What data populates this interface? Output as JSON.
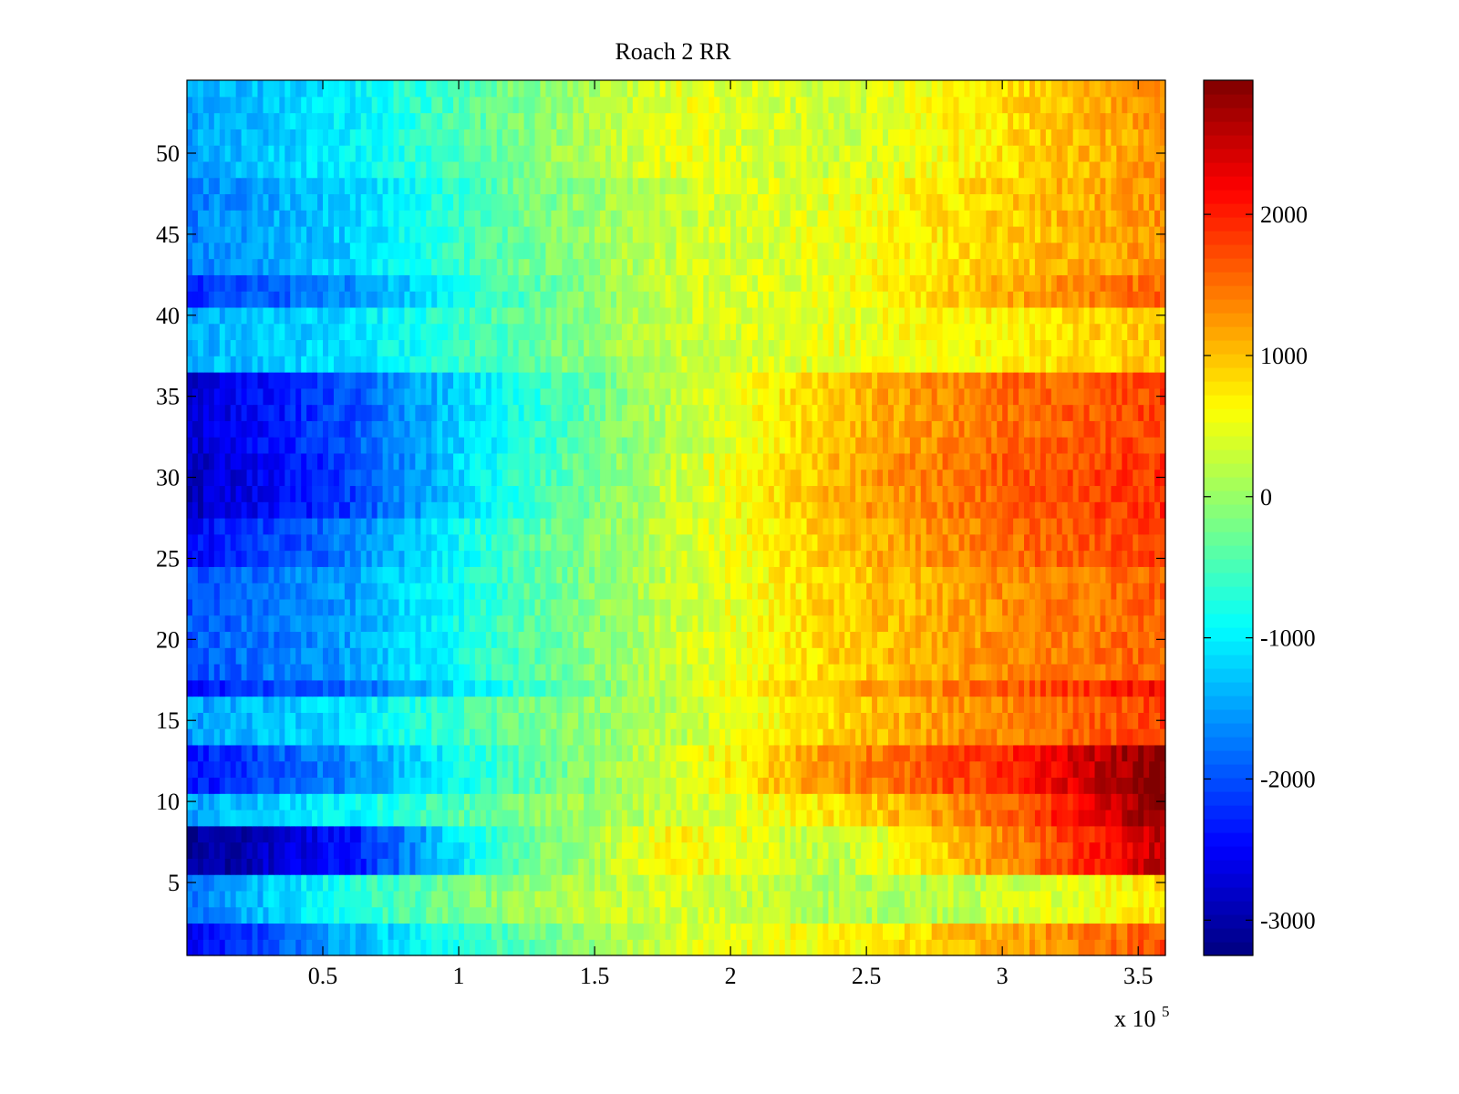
{
  "chart_data": {
    "type": "heatmap",
    "title": "Roach 2 RR",
    "xlabel": "",
    "ylabel": "",
    "x_range": [
      0,
      360000
    ],
    "y_range": [
      0.5,
      54.5
    ],
    "rows": 54,
    "x_ticks": [
      50000,
      100000,
      150000,
      200000,
      250000,
      300000,
      350000
    ],
    "x_tick_labels": [
      "0.5",
      "1",
      "1.5",
      "2",
      "2.5",
      "3",
      "3.5"
    ],
    "x_exponent_label": "x 10",
    "x_exponent_power": "5",
    "y_ticks": [
      5,
      10,
      15,
      20,
      25,
      30,
      35,
      40,
      45,
      50
    ],
    "y_tick_labels": [
      "5",
      "10",
      "15",
      "20",
      "25",
      "30",
      "35",
      "40",
      "45",
      "50"
    ],
    "colorbar": {
      "colormap": "jet",
      "range": [
        -3250,
        2950
      ],
      "ticks": [
        -3000,
        -2000,
        -1000,
        0,
        1000,
        2000
      ],
      "tick_labels": [
        "-3000",
        "-2000",
        "-1000",
        "0",
        "1000",
        "2000"
      ]
    },
    "color_columns_x": [
      0,
      60000,
      120000,
      180000,
      240000,
      300000,
      360000
    ],
    "row_profiles": [
      {
        "rows": [
          1,
          2
        ],
        "values": [
          -2600,
          -1400,
          -400,
          400,
          600,
          1100,
          1700
        ]
      },
      {
        "rows": [
          3,
          4,
          5
        ],
        "values": [
          -1800,
          -700,
          0,
          400,
          100,
          300,
          800
        ]
      },
      {
        "rows": [
          6,
          7,
          8
        ],
        "values": [
          -3200,
          -2400,
          -400,
          700,
          200,
          1300,
          2600
        ]
      },
      {
        "rows": [
          9,
          10
        ],
        "values": [
          -1500,
          -900,
          -200,
          300,
          800,
          1500,
          2900
        ]
      },
      {
        "rows": [
          11,
          12,
          13
        ],
        "values": [
          -2400,
          -1600,
          -500,
          400,
          1300,
          1900,
          3000
        ]
      },
      {
        "rows": [
          14,
          15,
          16
        ],
        "values": [
          -1500,
          -1100,
          -300,
          200,
          900,
          1400,
          1800
        ]
      },
      {
        "rows": [
          17
        ],
        "values": [
          -2400,
          -1900,
          -700,
          300,
          1100,
          1600,
          2200
        ]
      },
      {
        "rows": [
          18,
          19,
          20,
          21,
          22,
          23,
          24
        ],
        "values": [
          -2000,
          -1500,
          -500,
          300,
          900,
          1300,
          1600
        ]
      },
      {
        "rows": [
          25,
          26,
          27
        ],
        "values": [
          -2500,
          -1700,
          -500,
          300,
          1000,
          1500,
          1800
        ]
      },
      {
        "rows": [
          28,
          29,
          30,
          31
        ],
        "values": [
          -2900,
          -2100,
          -700,
          300,
          1100,
          1600,
          1900
        ]
      },
      {
        "rows": [
          32,
          33,
          34,
          35,
          36
        ],
        "values": [
          -2800,
          -2000,
          -800,
          200,
          1000,
          1500,
          1800
        ]
      },
      {
        "rows": [
          37,
          38,
          39,
          40
        ],
        "values": [
          -1400,
          -1100,
          -400,
          300,
          500,
          700,
          1000
        ]
      },
      {
        "rows": [
          41,
          42
        ],
        "values": [
          -2200,
          -1600,
          -500,
          300,
          500,
          1100,
          1600
        ]
      },
      {
        "rows": [
          43,
          44,
          45,
          46,
          47,
          48
        ],
        "values": [
          -1700,
          -1200,
          -300,
          300,
          500,
          900,
          1300
        ]
      },
      {
        "rows": [
          49,
          50,
          51,
          52,
          53,
          54
        ],
        "values": [
          -1500,
          -1000,
          -200,
          500,
          300,
          800,
          1300
        ]
      }
    ]
  }
}
